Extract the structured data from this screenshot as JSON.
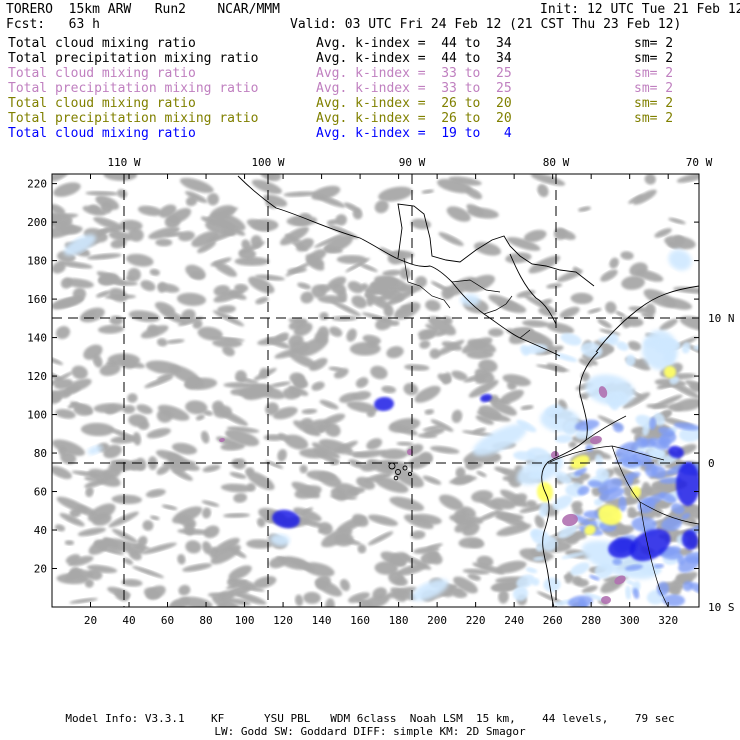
{
  "header": {
    "model": "TORERO  15km ARW   Run2    NCAR/MMM",
    "init": "Init: 12 UTC Tue 21 Feb 12",
    "fcst": "Fcst:   63 h",
    "valid": "Valid: 03 UTC Fri 24 Feb 12 (21 CST Thu 23 Feb 12)"
  },
  "legend": [
    {
      "name": "Total cloud mixing ratio",
      "avg": "Avg. k-index =  44 to  34",
      "sm": "sm= 2",
      "color": "#000000"
    },
    {
      "name": "Total precipitation mixing ratio",
      "avg": "Avg. k-index =  44 to  34",
      "sm": "sm= 2",
      "color": "#000000"
    },
    {
      "name": "Total cloud mixing ratio",
      "avg": "Avg. k-index =  33 to  25",
      "sm": "sm= 2",
      "color": "#c080c0"
    },
    {
      "name": "Total precipitation mixing ratio",
      "avg": "Avg. k-index =  33 to  25",
      "sm": "sm= 2",
      "color": "#c080c0"
    },
    {
      "name": "Total cloud mixing ratio",
      "avg": "Avg. k-index =  26 to  20",
      "sm": "sm= 2",
      "color": "#808000"
    },
    {
      "name": "Total precipitation mixing ratio",
      "avg": "Avg. k-index =  26 to  20",
      "sm": "sm= 2",
      "color": "#808000"
    },
    {
      "name": "Total cloud mixing ratio",
      "avg": "Avg. k-index =  19 to   4",
      "sm": "",
      "color": "#0000ff"
    }
  ],
  "map": {
    "lon_labels": [
      "110 W",
      "100 W",
      "90 W",
      "80 W",
      "70 W"
    ],
    "lat_labels": [
      "10 N",
      "0",
      "10 S"
    ],
    "x_ticks": [
      "20",
      "40",
      "60",
      "80",
      "100",
      "120",
      "140",
      "160",
      "180",
      "200",
      "220",
      "240",
      "260",
      "280",
      "300",
      "320"
    ],
    "y_ticks": [
      "20",
      "40",
      "60",
      "80",
      "100",
      "120",
      "140",
      "160",
      "180",
      "200",
      "220"
    ],
    "colors": {
      "cloud_gray": "#a8a8a8",
      "light_blue": "#cfe8ff",
      "mid_blue": "#7f9cf5",
      "deep_blue": "#1a1ae6",
      "purple": "#b070b0",
      "yellow": "#ffff66"
    }
  },
  "footer": {
    "line1": "Model Info: V3.3.1    KF      YSU PBL   WDM 6class  Noah LSM  15 km,    44 levels,    79 sec",
    "line2": "LW: Godd SW: Goddard DIFF: simple KM: 2D Smagor"
  }
}
